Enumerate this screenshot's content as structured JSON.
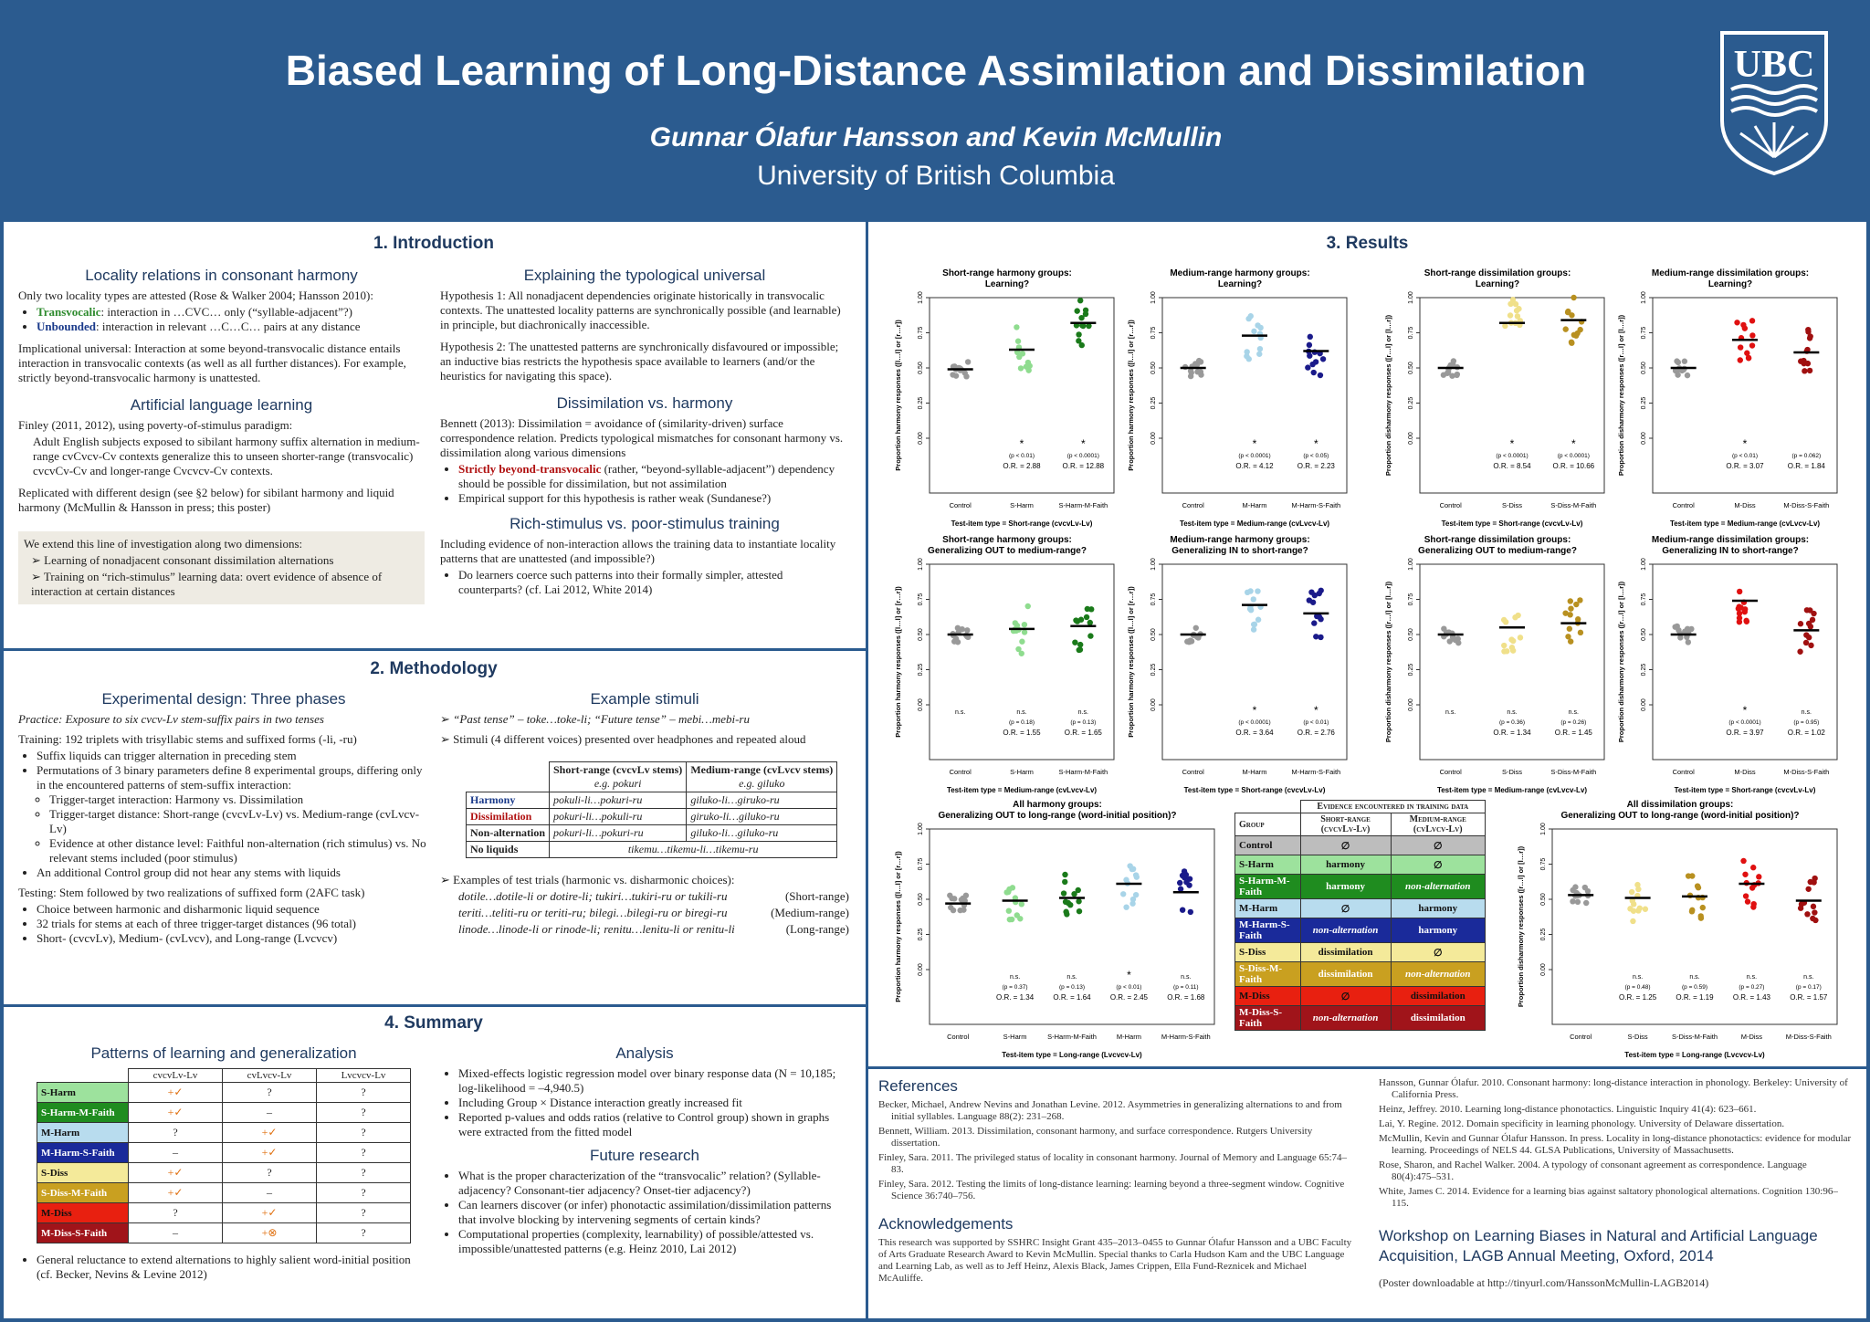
{
  "header": {
    "title": "Biased Learning of Long-Distance Assimilation and Dissimilation",
    "authors": "Gunnar Ólafur Hansson and Kevin McMullin",
    "affiliation": "University of British Columbia",
    "logo_text": "UBC"
  },
  "intro": {
    "heading": "1. Introduction",
    "locality_h": "Locality relations in consonant harmony",
    "locality_p1": "Only two locality types are attested (Rose & Walker 2004; Hansson 2010):",
    "transvocalic_label": "Transvocalic",
    "transvocalic_text": ": interaction in …CVC… only (“syllable-adjacent”?)",
    "unbounded_label": "Unbounded",
    "unbounded_text": ": interaction in relevant …C…C… pairs at any distance",
    "impl_p": "Implicational universal: Interaction at some beyond-transvocalic distance entails interaction in transvocalic contexts (as well as all further distances). For example, strictly beyond-transvocalic harmony is unattested.",
    "artificial_h": "Artificial language learning",
    "artificial_p1": "Finley (2011, 2012), using poverty-of-stimulus paradigm:",
    "artificial_p2": "Adult English subjects exposed to sibilant harmony suffix alternation in medium-range cvCvcv-Cv contexts generalize this to unseen shorter-range (transvocalic) cvcvCv-Cv and longer-range Cvcvcv-Cv contexts.",
    "artificial_p3": "Replicated with different design (see §2 below) for sibilant harmony and liquid harmony (McMullin & Hansson in press; this poster)",
    "extend_p": "We extend this line of investigation along two dimensions:",
    "extend_1": "Learning of nonadjacent consonant dissimilation alternations",
    "extend_2": "Training on “rich-stimulus” learning data: overt evidence of absence of interaction at certain distances",
    "explain_h": "Explaining the typological universal",
    "hyp1": "Hypothesis 1: All nonadjacent dependencies originate historically in transvocalic contexts. The unattested locality patterns are synchronically possible (and learnable) in principle, but diachronically inaccessible.",
    "hyp2": "Hypothesis 2: The unattested patterns are synchronically disfavoured or impossible; an inductive bias restricts the hypothesis space available to learners (and/or the heuristics for navigating this space).",
    "dissim_h": "Dissimilation vs. harmony",
    "dissim_p": "Bennett (2013): Dissimilation = avoidance of (similarity-driven) surface correspondence relation. Predicts typological mismatches for consonant harmony vs. dissimilation along various dimensions",
    "dissim_b1_red": "Strictly beyond-transvocalic",
    "dissim_b1": " (rather, “beyond-syllable-adjacent”) dependency should be possible for dissimilation, but not assimilation",
    "dissim_b2": "Empirical support for this hypothesis is rather weak (Sundanese?)",
    "rich_h": "Rich-stimulus vs. poor-stimulus training",
    "rich_p": "Including evidence of non-interaction allows the training data to instantiate locality patterns that are unattested (and impossible?)",
    "rich_b1": "Do learners coerce such patterns into their formally simpler, attested counterparts? (cf. Lai 2012, White 2014)"
  },
  "method": {
    "heading": "2. Methodology",
    "design_h": "Experimental design: Three phases",
    "practice": "Practice: Exposure to six cvcv-Lv stem-suffix pairs in two tenses",
    "training": "Training: 192 triplets with trisyllabic stems and suffixed forms (-li, -ru)",
    "tr_b1": "Suffix liquids can trigger alternation in preceding stem",
    "tr_b2": "Permutations of 3 binary parameters define 8 experimental groups, differing only in the encountered patterns of stem-suffix interaction:",
    "tr_b2a": "Trigger-target interaction: Harmony vs. Dissimilation",
    "tr_b2b": "Trigger-target distance: Short-range (cvcvLv-Lv) vs. Medium-range (cvLvcv-Lv)",
    "tr_b2c": "Evidence at other distance level: Faithful non-alternation (rich stimulus) vs. No relevant stems included (poor stimulus)",
    "tr_b3": "An additional Control group did not hear any stems with liquids",
    "testing": "Testing: Stem followed by two realizations of suffixed form (2AFC task)",
    "te_b1": "Choice between harmonic and disharmonic liquid sequence",
    "te_b2": "32 trials for stems at each of three trigger-target distances (96 total)",
    "te_b3": "Short- (cvcvLv), Medium- (cvLvcv), and Long-range (Lvcvcv)",
    "example_h": "Example stimuli",
    "ex1": "“Past tense” – toke…toke-li; “Future tense” – mebi…mebi-ru",
    "ex2": "Stimuli (4 different voices) presented over headphones and repeated aloud",
    "stim_table": {
      "col1": "Short-range (cvcvLv stems)",
      "col1_eg": "e.g. pokuri",
      "col2": "Medium-range (cvLvcv stems)",
      "col2_eg": "e.g. giluko",
      "rows": [
        {
          "label": "Harmony",
          "c1": "pokuli-li…pokuri-ru",
          "c2": "giluko-li…giruko-ru"
        },
        {
          "label": "Dissimilation",
          "c1": "pokuri-li…pokuli-ru",
          "c2": "giruko-li…giluko-ru"
        },
        {
          "label": "Non-alternation",
          "c1": "pokuri-li…pokuri-ru",
          "c2": "giluko-li…giluko-ru"
        },
        {
          "label": "No liquids",
          "c1": "tikemu…tikemu-li…tikemu-ru",
          "c2": ""
        }
      ]
    },
    "test_ex": "Examples of test trials (harmonic vs. disharmonic choices):",
    "test_rows": [
      {
        "text": "dotile…dotile-li or dotire-li; tukiri…tukiri-ru or tukili-ru",
        "range": "(Short-range)"
      },
      {
        "text": "teriti…teliti-ru or teriti-ru; bilegi…bilegi-ru or biregi-ru",
        "range": "(Medium-range)"
      },
      {
        "text": "linode…linode-li or rinode-li; renitu…lenitu-li or renitu-li",
        "range": "(Long-range)"
      }
    ]
  },
  "summary": {
    "heading": "4. Summary",
    "patterns_h": "Patterns of learning and generalization",
    "cols": [
      "cvcvLv-Lv",
      "cvLvcv-Lv",
      "Lvcvcv-Lv"
    ],
    "rows": [
      {
        "group": "S-Harm",
        "c": [
          "+✓",
          "?",
          "?"
        ]
      },
      {
        "group": "S-Harm-M-Faith",
        "c": [
          "+✓",
          "–",
          "?"
        ]
      },
      {
        "group": "M-Harm",
        "c": [
          "?",
          "+✓",
          "?"
        ]
      },
      {
        "group": "M-Harm-S-Faith",
        "c": [
          "–",
          "+✓",
          "?"
        ]
      },
      {
        "group": "S-Diss",
        "c": [
          "+✓",
          "?",
          "?"
        ]
      },
      {
        "group": "S-Diss-M-Faith",
        "c": [
          "+✓",
          "–",
          "?"
        ]
      },
      {
        "group": "M-Diss",
        "c": [
          "?",
          "+✓",
          "?"
        ]
      },
      {
        "group": "M-Diss-S-Faith",
        "c": [
          "–",
          "+⊗",
          "?"
        ]
      }
    ],
    "general": "General reluctance to extend alternations to highly salient word-initial position (cf. Becker, Nevins & Levine 2012)",
    "analysis_h": "Analysis",
    "an_b1": "Mixed-effects logistic regression model over binary response data (N = 10,185; log-likelihood = –4,940.5)",
    "an_b2": "Including Group × Distance interaction greatly increased fit",
    "an_b3": "Reported p-values and odds ratios (relative to Control group) shown in graphs were extracted from the fitted model",
    "future_h": "Future research",
    "fu_b1": "What is the proper characterization of the “transvocalic” relation? (Syllable-adjacency? Consonant-tier adjacency? Onset-tier adjacency?)",
    "fu_b2": "Can learners discover (or infer) phonotactic assimilation/dissimilation patterns that involve blocking by intervening segments of certain kinds?",
    "fu_b3": "Computational properties (complexity, learnability) of possible/attested vs. impossible/unattested patterns (e.g. Heinz 2010, Lai 2012)"
  },
  "results": {
    "heading": "3. Results",
    "charts": [
      {
        "title": "Short-range harmony groups: Learning?",
        "ylabel": "Proportion harmony responses ([l…l] or [r…r])",
        "xlabel": "Test-item type = Short-range (cvcvLv-Lv)",
        "groups": [
          "Control",
          "S-Harm",
          "S-Harm-M-Faith"
        ],
        "means": [
          0.49,
          0.63,
          0.82
        ],
        "p": [
          "",
          "(p < 0.01)",
          "(p < 0.0001)"
        ],
        "sig": [
          "",
          "*",
          "*"
        ],
        "or": [
          "",
          "O.R. = 2.88",
          "O.R. = 12.88"
        ],
        "colors": [
          "#999999",
          "#8fdc8f",
          "#1a7a1a"
        ]
      },
      {
        "title": "Medium-range harmony groups: Learning?",
        "ylabel": "Proportion harmony responses ([l…l] or [r…r])",
        "xlabel": "Test-item type = Medium-range (cvLvcv-Lv)",
        "groups": [
          "Control",
          "M-Harm",
          "M-Harm-S-Faith"
        ],
        "means": [
          0.5,
          0.73,
          0.62
        ],
        "p": [
          "",
          "(p < 0.0001)",
          "(p < 0.05)"
        ],
        "sig": [
          "",
          "*",
          "*"
        ],
        "or": [
          "",
          "O.R. = 4.12",
          "O.R. = 2.23"
        ],
        "colors": [
          "#999999",
          "#a8d4e8",
          "#1a1a8a"
        ]
      },
      {
        "title": "Short-range dissimilation groups: Learning?",
        "ylabel": "Proportion disharmony responses ([r…l] or [l…r])",
        "xlabel": "Test-item type = Short-range (cvcvLv-Lv)",
        "groups": [
          "Control",
          "S-Diss",
          "S-Diss-M-Faith"
        ],
        "means": [
          0.5,
          0.82,
          0.84
        ],
        "p": [
          "",
          "(p < 0.0001)",
          "(p < 0.0001)"
        ],
        "sig": [
          "",
          "*",
          "*"
        ],
        "or": [
          "",
          "O.R. = 8.54",
          "O.R. = 10.66"
        ],
        "colors": [
          "#999999",
          "#f0e08a",
          "#b89020"
        ]
      },
      {
        "title": "Medium-range dissimilation groups: Learning?",
        "ylabel": "Proportion disharmony responses ([r…l] or [l…r])",
        "xlabel": "Test-item type = Medium-range (cvLvcv-Lv)",
        "groups": [
          "Control",
          "M-Diss",
          "M-Diss-S-Faith"
        ],
        "means": [
          0.5,
          0.7,
          0.61
        ],
        "p": [
          "",
          "(p < 0.01)",
          "(p = 0.062)"
        ],
        "sig": [
          "",
          "*",
          ""
        ],
        "or": [
          "",
          "O.R. = 3.07",
          "O.R. = 1.84"
        ],
        "colors": [
          "#999999",
          "#e01010",
          "#a01010"
        ]
      },
      {
        "title": "Short-range harmony groups: Generalizing OUT to medium-range?",
        "ylabel": "Proportion harmony responses ([l…l] or [r…r])",
        "xlabel": "Test-item type = Medium-range (cvLvcv-Lv)",
        "groups": [
          "Control",
          "S-Harm",
          "S-Harm-M-Faith"
        ],
        "means": [
          0.5,
          0.54,
          0.56
        ],
        "p": [
          "",
          "(p = 0.18)",
          "(p = 0.13)"
        ],
        "sig": [
          "n.s.",
          "n.s.",
          "n.s."
        ],
        "or": [
          "",
          "O.R. = 1.55",
          "O.R. = 1.65"
        ],
        "colors": [
          "#999999",
          "#8fdc8f",
          "#1a7a1a"
        ]
      },
      {
        "title": "Medium-range harmony groups: Generalizing IN to short-range?",
        "ylabel": "Proportion harmony responses ([l…l] or [r…r])",
        "xlabel": "Test-item type = Short-range (cvcvLv-Lv)",
        "groups": [
          "Control",
          "M-Harm",
          "M-Harm-S-Faith"
        ],
        "means": [
          0.5,
          0.71,
          0.65
        ],
        "p": [
          "",
          "(p < 0.0001)",
          "(p < 0.01)"
        ],
        "sig": [
          "",
          "*",
          "*"
        ],
        "or": [
          "",
          "O.R. = 3.64",
          "O.R. = 2.76"
        ],
        "colors": [
          "#999999",
          "#a8d4e8",
          "#1a1a8a"
        ]
      },
      {
        "title": "Short-range dissimilation groups: Generalizing OUT to medium-range?",
        "ylabel": "Proportion disharmony responses ([r…l] or [l…r])",
        "xlabel": "Test-item type = Medium-range (cvLvcv-Lv)",
        "groups": [
          "Control",
          "S-Diss",
          "S-Diss-M-Faith"
        ],
        "means": [
          0.5,
          0.55,
          0.58
        ],
        "p": [
          "",
          "(p = 0.36)",
          "(p = 0.26)"
        ],
        "sig": [
          "n.s.",
          "n.s.",
          "n.s."
        ],
        "or": [
          "",
          "O.R. = 1.34",
          "O.R. = 1.45"
        ],
        "colors": [
          "#999999",
          "#f0e08a",
          "#b89020"
        ]
      },
      {
        "title": "Medium-range dissimilation groups: Generalizing IN to short-range?",
        "ylabel": "Proportion disharmony responses ([r…l] or [l…r])",
        "xlabel": "Test-item type = Short-range (cvcvLv-Lv)",
        "groups": [
          "Control",
          "M-Diss",
          "M-Diss-S-Faith"
        ],
        "means": [
          0.5,
          0.74,
          0.53
        ],
        "p": [
          "",
          "(p < 0.0001)",
          "(p = 0.95)"
        ],
        "sig": [
          "",
          "*",
          "n.s."
        ],
        "or": [
          "",
          "O.R. = 3.97",
          "O.R. = 1.02"
        ],
        "colors": [
          "#999999",
          "#e01010",
          "#a01010"
        ]
      }
    ],
    "chart_harm_long": {
      "title": "All harmony groups: Generalizing OUT to long-range (word-initial position)?",
      "ylabel": "Proportion harmony responses ([l…l] or [r…r])",
      "xlabel": "Test-item type = Long-range (Lvcvcv-Lv)",
      "groups": [
        "Control",
        "S-Harm",
        "S-Harm-M-Faith",
        "M-Harm",
        "M-Harm-S-Faith"
      ],
      "means": [
        0.47,
        0.49,
        0.51,
        0.61,
        0.55
      ],
      "p": [
        "",
        "(p = 0.37)",
        "(p = 0.13)",
        "(p < 0.01)",
        "(p = 0.11)"
      ],
      "sig": [
        "",
        "n.s.",
        "n.s.",
        "*",
        "n.s."
      ],
      "or": [
        "",
        "O.R. = 1.34",
        "O.R. = 1.64",
        "O.R. = 2.45",
        "O.R. = 1.68"
      ],
      "colors": [
        "#999999",
        "#8fdc8f",
        "#1a7a1a",
        "#a8d4e8",
        "#1a1a8a"
      ]
    },
    "chart_diss_long": {
      "title": "All dissimilation groups: Generalizing OUT to long-range (word-initial position)?",
      "ylabel": "Proportion disharmony responses ([r…l] or [l…r])",
      "xlabel": "Test-item type = Long-range (Lvcvcv-Lv)",
      "groups": [
        "Control",
        "S-Diss",
        "S-Diss-M-Faith",
        "M-Diss",
        "M-Diss-S-Faith"
      ],
      "means": [
        0.53,
        0.51,
        0.52,
        0.61,
        0.49
      ],
      "p": [
        "",
        "(p = 0.48)",
        "(p = 0.59)",
        "(p = 0.27)",
        "(p = 0.17)"
      ],
      "sig": [
        "",
        "n.s.",
        "n.s.",
        "n.s.",
        "n.s."
      ],
      "or": [
        "",
        "O.R. = 1.25",
        "O.R. = 1.19",
        "O.R. = 1.43",
        "O.R. = 1.57"
      ],
      "colors": [
        "#999999",
        "#f0e08a",
        "#b89020",
        "#e01010",
        "#a01010"
      ]
    },
    "evidence_table": {
      "head": "Evidence encountered in training data",
      "group_h": "Group",
      "sr_h": "Short-range (cvcvLv-Lv)",
      "mr_h": "Medium-range (cvLvcv-Lv)",
      "rows": [
        {
          "g": "Control",
          "s": "∅",
          "m": "∅",
          "bg": "#bdbdbd",
          "fg": "#111"
        },
        {
          "g": "S-Harm",
          "s": "harmony",
          "m": "∅",
          "bg": "#9de29d",
          "fg": "#111"
        },
        {
          "g": "S-Harm-M-Faith",
          "s": "harmony",
          "m": "non-alternation",
          "bg": "#1f8c1f",
          "fg": "#fff"
        },
        {
          "g": "M-Harm",
          "s": "∅",
          "m": "harmony",
          "bg": "#b8dcee",
          "fg": "#111"
        },
        {
          "g": "M-Harm-S-Faith",
          "s": "non-alternation",
          "m": "harmony",
          "bg": "#1a2a9a",
          "fg": "#fff"
        },
        {
          "g": "S-Diss",
          "s": "dissimilation",
          "m": "∅",
          "bg": "#f4ea9a",
          "fg": "#111"
        },
        {
          "g": "S-Diss-M-Faith",
          "s": "dissimilation",
          "m": "non-alternation",
          "bg": "#c9a020",
          "fg": "#fff"
        },
        {
          "g": "M-Diss",
          "s": "∅",
          "m": "dissimilation",
          "bg": "#e82010",
          "fg": "#111"
        },
        {
          "g": "M-Diss-S-Faith",
          "s": "non-alternation",
          "m": "dissimilation",
          "bg": "#a0141a",
          "fg": "#fff"
        }
      ]
    }
  },
  "refs": {
    "heading": "References",
    "col1": [
      "Becker, Michael, Andrew Nevins and Jonathan Levine. 2012. Asymmetries in generalizing alternations to and from initial syllables. Language 88(2): 231–268.",
      "Bennett, William. 2013. Dissimilation, consonant harmony, and surface correspondence. Rutgers University dissertation.",
      "Finley, Sara. 2011. The privileged status of locality in consonant harmony. Journal of Memory and Language 65:74–83.",
      "Finley, Sara. 2012. Testing the limits of long-distance learning: learning beyond a three-segment window. Cognitive Science 36:740–756."
    ],
    "col2": [
      "Hansson, Gunnar Ólafur. 2010. Consonant harmony: long-distance interaction in phonology. Berkeley: University of California Press.",
      "Heinz, Jeffrey. 2010. Learning long-distance phonotactics. Linguistic Inquiry 41(4): 623–661.",
      "Lai, Y. Regine. 2012. Domain specificity in learning phonology. University of Delaware dissertation.",
      "McMullin, Kevin and Gunnar Ólafur Hansson. In press. Locality in long-distance phonotactics: evidence for modular learning. Proceedings of NELS 44. GLSA Publications, University of Massachusetts.",
      "Rose, Sharon, and Rachel Walker. 2004. A typology of consonant agreement as correspondence. Language 80(4):475–531.",
      "White, James C. 2014. Evidence for a learning bias against saltatory phonological alternations. Cognition 130:96–115."
    ],
    "ack_h": "Acknowledgements",
    "ack": "This research was supported by SSHRC Insight Grant 435–2013–0455 to Gunnar Ólafur Hansson and a UBC Faculty of Arts Graduate Research Award to Kevin McMullin. Special thanks to Carla Hudson Kam and the UBC Language and Learning Lab, as well as to Jeff Heinz, Alexis Black, James Crippen, Ella Fund-Reznicek and Michael McAuliffe.",
    "workshop": "Workshop on Learning Biases in Natural and Artificial Language Acquisition, LAGB Annual Meeting, Oxford, 2014",
    "download": "(Poster downloadable at http://tinyurl.com/HanssonMcMullin-LAGB2014)"
  }
}
